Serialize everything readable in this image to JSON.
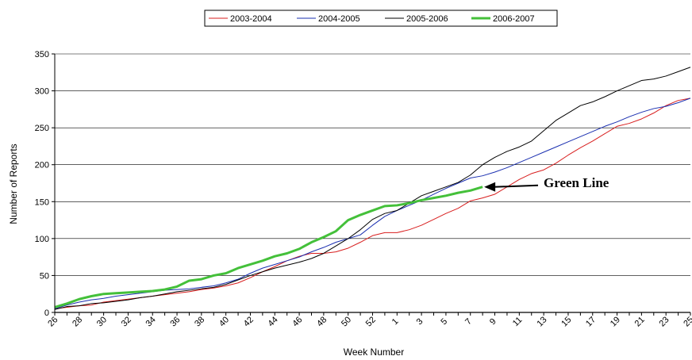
{
  "chart_data": {
    "type": "line",
    "xlabel": "Week Number",
    "ylabel": "Number of Reports",
    "ylim": [
      0,
      350
    ],
    "yticks": [
      0,
      50,
      100,
      150,
      200,
      250,
      300,
      350
    ],
    "grid": "horizontal major gridlines",
    "legend_position": "top",
    "categories": [
      "26",
      "27",
      "28",
      "29",
      "30",
      "31",
      "32",
      "33",
      "34",
      "35",
      "36",
      "37",
      "38",
      "39",
      "40",
      "41",
      "42",
      "43",
      "44",
      "45",
      "46",
      "47",
      "48",
      "49",
      "50",
      "51",
      "52",
      "1",
      "2",
      "3",
      "4",
      "5",
      "6",
      "7",
      "8",
      "9",
      "10",
      "11",
      "12",
      "13",
      "14",
      "15",
      "16",
      "17",
      "18",
      "19",
      "20",
      "21",
      "22",
      "23",
      "24",
      "25",
      "26"
    ],
    "tick_labels": [
      "26",
      "28",
      "30",
      "32",
      "34",
      "36",
      "38",
      "40",
      "42",
      "44",
      "46",
      "48",
      "50",
      "52",
      "1",
      "3",
      "5",
      "7",
      "9",
      "11",
      "13",
      "15",
      "17",
      "19",
      "21",
      "23",
      "25"
    ],
    "series": [
      {
        "name": "2003-2004",
        "color": "#d81e1e",
        "width": 1,
        "values": [
          5,
          7,
          9,
          10,
          14,
          16,
          18,
          20,
          22,
          24,
          26,
          28,
          31,
          33,
          36,
          40,
          47,
          55,
          62,
          70,
          76,
          80,
          80,
          82,
          87,
          95,
          104,
          108,
          108,
          112,
          118,
          126,
          134,
          141,
          151,
          155,
          160,
          170,
          180,
          188,
          193,
          202,
          213,
          223,
          232,
          242,
          252,
          256,
          262,
          270,
          280,
          287,
          290
        ]
      },
      {
        "name": "2004-2005",
        "color": "#1a2fb0",
        "width": 1,
        "values": [
          5,
          10,
          14,
          17,
          19,
          22,
          24,
          26,
          28,
          30,
          31,
          32,
          34,
          36,
          40,
          45,
          53,
          60,
          65,
          70,
          75,
          82,
          88,
          95,
          100,
          105,
          118,
          130,
          138,
          145,
          152,
          160,
          168,
          175,
          182,
          185,
          190,
          196,
          203,
          210,
          217,
          224,
          231,
          238,
          245,
          252,
          258,
          265,
          271,
          276,
          279,
          284,
          290
        ]
      },
      {
        "name": "2005-2006",
        "color": "#000000",
        "width": 1,
        "values": [
          4,
          8,
          9,
          12,
          13,
          15,
          17,
          20,
          22,
          25,
          28,
          30,
          32,
          34,
          38,
          44,
          50,
          55,
          60,
          64,
          68,
          73,
          80,
          90,
          100,
          112,
          126,
          134,
          138,
          148,
          158,
          164,
          170,
          176,
          186,
          200,
          210,
          218,
          224,
          232,
          246,
          260,
          270,
          280,
          285,
          292,
          300,
          307,
          314,
          316,
          320,
          326,
          332
        ]
      },
      {
        "name": "2006-2007",
        "color": "#44c03a",
        "width": 3,
        "values": [
          7,
          12,
          18,
          22,
          25,
          26,
          27,
          28,
          29,
          31,
          35,
          43,
          45,
          50,
          53,
          60,
          65,
          70,
          76,
          80,
          86,
          95,
          102,
          110,
          125,
          132,
          138,
          144,
          145,
          148,
          152,
          155,
          158,
          162,
          165,
          170,
          null,
          null,
          null,
          null,
          null,
          null,
          null,
          null,
          null,
          null,
          null,
          null,
          null,
          null,
          null,
          null,
          null
        ]
      }
    ],
    "annotations": [
      {
        "text": "Green Line",
        "points_to": "2006-2007",
        "x": "9",
        "y": 172
      }
    ]
  }
}
